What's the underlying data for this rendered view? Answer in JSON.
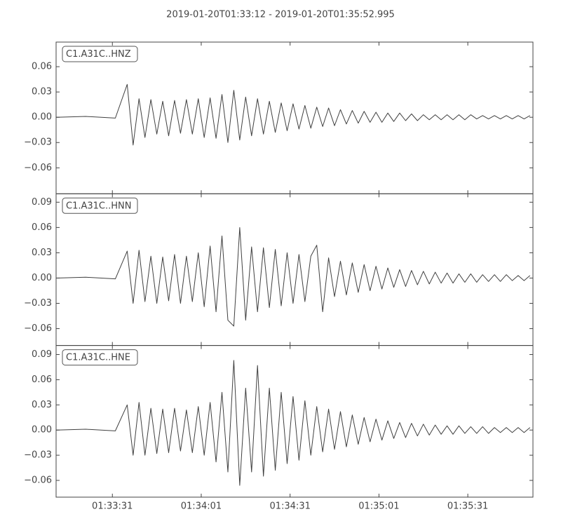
{
  "chart_data": [
    {
      "type": "line",
      "title": "2019-01-20T01:33:12  -  2019-01-20T01:35:52.995",
      "xlim": [
        0,
        160.995
      ],
      "ylim": [
        -0.0908,
        0.0892
      ],
      "yticks": [
        {
          "value": -0.06,
          "label": "−0.06"
        },
        {
          "value": -0.03,
          "label": "−0.03"
        },
        {
          "value": 0,
          "label": "0.00"
        },
        0.03,
        0.06
      ],
      "x": [
        0,
        10,
        20,
        24,
        26,
        28,
        30,
        32,
        34,
        36,
        38,
        40,
        42,
        44,
        46,
        48,
        50,
        52,
        54,
        56,
        58,
        60,
        62,
        64,
        66,
        68,
        70,
        72,
        74,
        76,
        78,
        80,
        82,
        84,
        86,
        88,
        90,
        92,
        94,
        96,
        98,
        100,
        102,
        104,
        106,
        108,
        110,
        112,
        114,
        116,
        118,
        120,
        122,
        124,
        126,
        128,
        130,
        132,
        134,
        136,
        138,
        140,
        142,
        144,
        146,
        148,
        150,
        152,
        154,
        156,
        158,
        160
      ],
      "series": [
        {
          "name": "C1.A31C..HNZ",
          "color": "#404040",
          "values": [
            0.0,
            0.001,
            -0.001,
            0.039,
            -0.033,
            0.022,
            -0.024,
            0.021,
            -0.02,
            0.019,
            -0.022,
            0.02,
            -0.019,
            0.021,
            -0.02,
            0.022,
            -0.024,
            0.023,
            -0.025,
            0.027,
            -0.03,
            0.032,
            -0.027,
            0.024,
            -0.022,
            0.022,
            -0.02,
            0.019,
            -0.018,
            0.017,
            -0.016,
            0.016,
            -0.014,
            0.014,
            -0.013,
            0.012,
            -0.011,
            0.011,
            -0.01,
            0.009,
            -0.008,
            0.008,
            -0.007,
            0.007,
            -0.006,
            0.006,
            -0.006,
            0.005,
            -0.005,
            0.005,
            -0.004,
            0.004,
            -0.004,
            0.003,
            -0.003,
            0.003,
            -0.003,
            0.003,
            -0.003,
            0.003,
            -0.003,
            0.003,
            -0.002,
            0.002,
            -0.002,
            0.002,
            -0.002,
            0.002,
            -0.002,
            0.002,
            -0.002,
            0.002
          ]
        }
      ]
    },
    {
      "type": "line",
      "xlim": [
        0,
        160.995
      ],
      "ylim": [
        -0.08,
        0.1
      ],
      "yticks": [
        {
          "value": -0.06,
          "label": "−0.06"
        },
        {
          "value": -0.03,
          "label": "−0.03"
        },
        {
          "value": 0,
          "label": "0.00"
        },
        0.03,
        0.06,
        0.09
      ],
      "x": [
        0,
        10,
        20,
        24,
        26,
        28,
        30,
        32,
        34,
        36,
        38,
        40,
        42,
        44,
        46,
        48,
        50,
        52,
        54,
        56,
        58,
        60,
        62,
        64,
        66,
        68,
        70,
        72,
        74,
        76,
        78,
        80,
        82,
        84,
        86,
        88,
        90,
        92,
        94,
        96,
        98,
        100,
        102,
        104,
        106,
        108,
        110,
        112,
        114,
        116,
        118,
        120,
        122,
        124,
        126,
        128,
        130,
        132,
        134,
        136,
        138,
        140,
        142,
        144,
        146,
        148,
        150,
        152,
        154,
        156,
        158,
        160
      ],
      "series": [
        {
          "name": "C1.A31C..HNN",
          "color": "#404040",
          "values": [
            0.0,
            0.001,
            -0.001,
            0.032,
            -0.03,
            0.033,
            -0.028,
            0.026,
            -0.03,
            0.025,
            -0.027,
            0.028,
            -0.03,
            0.026,
            -0.028,
            0.03,
            -0.034,
            0.038,
            -0.04,
            0.05,
            -0.05,
            -0.057,
            0.06,
            -0.05,
            0.037,
            -0.04,
            0.036,
            -0.035,
            0.034,
            -0.033,
            0.03,
            -0.03,
            0.028,
            -0.028,
            0.026,
            0.039,
            -0.04,
            0.024,
            -0.022,
            0.02,
            -0.02,
            0.018,
            -0.017,
            0.016,
            -0.015,
            0.014,
            -0.013,
            0.012,
            -0.011,
            0.01,
            -0.01,
            0.009,
            -0.008,
            0.008,
            -0.007,
            0.007,
            -0.006,
            0.006,
            -0.006,
            0.005,
            -0.005,
            0.005,
            -0.005,
            0.004,
            -0.004,
            0.004,
            -0.004,
            0.004,
            -0.003,
            0.003,
            -0.003,
            0.003
          ]
        }
      ]
    },
    {
      "type": "line",
      "xlim": [
        0,
        160.995
      ],
      "ylim": [
        -0.08,
        0.1008
      ],
      "yticks": [
        {
          "value": -0.06,
          "label": "−0.06"
        },
        {
          "value": -0.03,
          "label": "−0.03"
        },
        {
          "value": 0,
          "label": "0.00"
        },
        0.03,
        0.06,
        0.09
      ],
      "xticks": [
        {
          "value": 19,
          "label": "01:33:31"
        },
        {
          "value": 49,
          "label": "01:34:01"
        },
        {
          "value": 79,
          "label": "01:34:31"
        },
        {
          "value": 109,
          "label": "01:35:01"
        },
        {
          "value": 139,
          "label": "01:35:31"
        }
      ],
      "x": [
        0,
        10,
        20,
        24,
        26,
        28,
        30,
        32,
        34,
        36,
        38,
        40,
        42,
        44,
        46,
        48,
        50,
        52,
        54,
        56,
        58,
        60,
        62,
        64,
        66,
        68,
        70,
        72,
        74,
        76,
        78,
        80,
        82,
        84,
        86,
        88,
        90,
        92,
        94,
        96,
        98,
        100,
        102,
        104,
        106,
        108,
        110,
        112,
        114,
        116,
        118,
        120,
        122,
        124,
        126,
        128,
        130,
        132,
        134,
        136,
        138,
        140,
        142,
        144,
        146,
        148,
        150,
        152,
        154,
        156,
        158,
        160
      ],
      "series": [
        {
          "name": "C1.A31C..HNE",
          "color": "#404040",
          "values": [
            0.0,
            0.001,
            -0.001,
            0.03,
            -0.03,
            0.033,
            -0.03,
            0.026,
            -0.028,
            0.025,
            -0.027,
            0.026,
            -0.025,
            0.024,
            -0.027,
            0.028,
            -0.03,
            0.033,
            -0.038,
            0.045,
            -0.05,
            0.083,
            -0.066,
            0.05,
            -0.05,
            0.077,
            -0.055,
            0.05,
            -0.048,
            0.045,
            -0.04,
            0.04,
            -0.036,
            0.035,
            -0.03,
            0.028,
            -0.026,
            0.025,
            -0.023,
            0.022,
            -0.02,
            0.018,
            -0.017,
            0.015,
            -0.014,
            0.013,
            -0.012,
            0.011,
            -0.01,
            0.009,
            -0.009,
            0.008,
            -0.007,
            0.007,
            -0.006,
            0.006,
            -0.005,
            0.005,
            -0.005,
            0.005,
            -0.004,
            0.004,
            -0.004,
            0.004,
            -0.004,
            0.003,
            -0.003,
            0.003,
            -0.003,
            0.003,
            -0.003,
            0.003
          ]
        }
      ]
    }
  ]
}
